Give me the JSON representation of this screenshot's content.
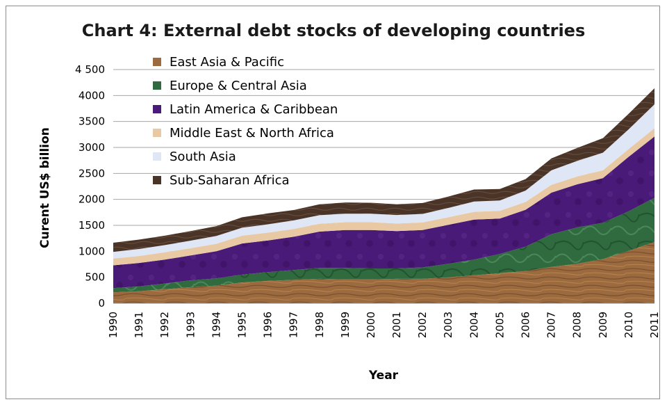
{
  "chart_data": {
    "type": "area",
    "stacked": true,
    "title": "Chart 4: External debt stocks of developing countries",
    "xlabel": "Year",
    "ylabel": "Curent US$ billion",
    "ylim": [
      0,
      4500
    ],
    "yticks": [
      "0",
      "500",
      "1000",
      "1500",
      "2000",
      "2500",
      "3000",
      "3500",
      "4000",
      "4 500"
    ],
    "categories": [
      "1990",
      "1991",
      "1992",
      "1993",
      "1994",
      "1995",
      "1996",
      "1997",
      "1998",
      "1999",
      "2000",
      "2001",
      "2002",
      "2003",
      "2004",
      "2005",
      "2006",
      "2007",
      "2008",
      "2009",
      "2010",
      "2011"
    ],
    "grid": true,
    "legend_position": "top-left inside plot",
    "series": [
      {
        "name": "East Asia & Pacific",
        "color": "#9b6a3e",
        "values": [
          210,
          230,
          270,
          310,
          340,
          400,
          430,
          450,
          470,
          460,
          460,
          470,
          470,
          500,
          540,
          580,
          620,
          700,
          760,
          850,
          1010,
          1180
        ]
      },
      {
        "name": "Europe & Central Asia",
        "color": "#2f6b3f",
        "values": [
          80,
          95,
          110,
          130,
          140,
          150,
          170,
          190,
          210,
          220,
          210,
          200,
          220,
          260,
          300,
          370,
          470,
          630,
          700,
          700,
          760,
          850
        ]
      },
      {
        "name": "Latin America & Caribbean",
        "color": "#4a1a78",
        "values": [
          440,
          450,
          460,
          480,
          520,
          600,
          610,
          640,
          700,
          730,
          740,
          720,
          720,
          750,
          770,
          680,
          710,
          800,
          830,
          860,
          1050,
          1180
        ]
      },
      {
        "name": "Middle East & North Africa",
        "color": "#e8c9a3",
        "values": [
          130,
          135,
          140,
          140,
          145,
          150,
          150,
          150,
          150,
          150,
          150,
          145,
          145,
          145,
          150,
          150,
          150,
          150,
          150,
          150,
          150,
          160
        ]
      },
      {
        "name": "South Asia",
        "color": "#dfe6f5",
        "values": [
          130,
          135,
          140,
          145,
          150,
          155,
          160,
          165,
          165,
          165,
          165,
          165,
          165,
          180,
          200,
          200,
          220,
          280,
          300,
          340,
          380,
          460
        ]
      },
      {
        "name": "Sub-Saharan Africa",
        "color": "#4a3428",
        "values": [
          175,
          180,
          180,
          185,
          190,
          200,
          210,
          200,
          210,
          215,
          210,
          205,
          210,
          220,
          230,
          220,
          220,
          230,
          250,
          280,
          300,
          310
        ]
      }
    ]
  }
}
